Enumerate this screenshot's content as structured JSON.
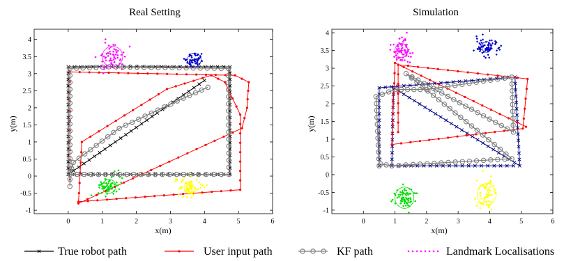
{
  "legend": [
    {
      "label": "True robot path",
      "color": "#000000",
      "marker": "x"
    },
    {
      "label": "User input path",
      "color": "#ff0000",
      "marker": "dot"
    },
    {
      "label": "KF path",
      "color": "#7f7f7f",
      "marker": "o"
    },
    {
      "label": "Landmark Localisations",
      "color": "#ff00ff",
      "marker": "dots"
    }
  ],
  "chart_data": [
    {
      "type": "line",
      "title": "Real Setting",
      "xlabel": "x(m)",
      "ylabel": "y(m)",
      "xlim": [
        -1,
        6
      ],
      "ylim": [
        -1.1,
        4.3
      ],
      "xticks": [
        0,
        1,
        2,
        3,
        4,
        5,
        6
      ],
      "yticks": [
        -1,
        -0.5,
        0,
        0.5,
        1,
        1.5,
        2,
        2.5,
        3,
        3.5,
        4
      ],
      "colors": {
        "true": "#000000",
        "user": "#ff0000",
        "kf": "#7f7f7f",
        "kf_dark": "#555555",
        "lm1": "#ff00ff",
        "lm2": "#0000cc",
        "lm3": "#00dd00",
        "lm4": "#ffff00"
      },
      "series": [
        {
          "name": "True robot path",
          "key": "true",
          "x": [
            0,
            0,
            4.75,
            4.75,
            0,
            4.0
          ],
          "y": [
            0.05,
            3.2,
            3.2,
            0.05,
            0.05,
            2.8
          ]
        },
        {
          "name": "User input path",
          "key": "user",
          "x": [
            0.05,
            0.05,
            4.9,
            5.3,
            5.25,
            5.1,
            0.3,
            0.4,
            2.9,
            4.2,
            4.6,
            5.05,
            5.05,
            0.3
          ],
          "y": [
            -0.1,
            3.05,
            2.95,
            2.75,
            2.0,
            1.4,
            -0.8,
            1.0,
            2.55,
            2.95,
            2.75,
            1.8,
            -0.4,
            -0.75
          ]
        },
        {
          "name": "KF path",
          "key": "kf",
          "x": [
            0.05,
            0.05,
            1.2,
            4.7,
            4.72,
            3.6,
            0.05,
            0.15,
            1.5,
            3.2,
            4.1
          ],
          "y": [
            -0.3,
            3.15,
            3.2,
            3.15,
            0.05,
            0.05,
            0.05,
            0.4,
            1.4,
            2.2,
            2.6
          ]
        },
        {
          "name": "Landmark 1",
          "key": "lm1",
          "center": [
            1.3,
            3.5
          ],
          "spread": [
            0.35,
            0.35
          ],
          "n": 60,
          "circle_r": 0.3
        },
        {
          "name": "Landmark 2",
          "key": "lm2",
          "center": [
            3.7,
            3.4
          ],
          "spread": [
            0.3,
            0.18
          ],
          "n": 50,
          "circle_r": 0.2
        },
        {
          "name": "Landmark 3",
          "key": "lm3",
          "center": [
            1.2,
            -0.3
          ],
          "spread": [
            0.35,
            0.3
          ],
          "n": 60,
          "circle_r": 0.2
        },
        {
          "name": "Landmark 4",
          "key": "lm4",
          "center": [
            3.55,
            -0.35
          ],
          "spread": [
            0.4,
            0.38
          ],
          "n": 70,
          "circle_r": 0.15
        }
      ]
    },
    {
      "type": "line",
      "title": "Simulation",
      "xlabel": "x(m)",
      "ylabel": "y(m)",
      "xlim": [
        -1,
        6
      ],
      "ylim": [
        -1.1,
        4.1
      ],
      "xticks": [
        0,
        1,
        2,
        3,
        4,
        5,
        6
      ],
      "yticks": [
        -1,
        -0.5,
        0,
        0.5,
        1,
        1.5,
        2,
        2.5,
        3,
        3.5,
        4
      ],
      "colors": {
        "true": "#000080",
        "user": "#ff0000",
        "kf": "#7f7f7f",
        "kf_dark": "#555555",
        "lm1": "#ff00ff",
        "lm2": "#0000cc",
        "lm3": "#00dd00",
        "lm4": "#ffff00"
      },
      "series": [
        {
          "name": "True robot path",
          "key": "true",
          "x": [
            0.5,
            0.5,
            4.8,
            4.95,
            0.95,
            0.9,
            4.75
          ],
          "y": [
            0.25,
            2.45,
            2.75,
            0.25,
            2.45,
            0.25,
            0.25
          ]
        },
        {
          "name": "User input path",
          "key": "user",
          "x": [
            1.1,
            1.1,
            5.2,
            5.05,
            0.9,
            1.0,
            5.15
          ],
          "y": [
            1.2,
            3.1,
            2.7,
            1.3,
            0.85,
            3.15,
            1.35
          ]
        },
        {
          "name": "KF path",
          "key": "kf",
          "x": [
            0.5,
            0.4,
            1.0,
            2.0,
            4.7,
            4.75,
            1.35,
            3.6,
            4.7,
            0.9,
            0.55
          ],
          "y": [
            0.25,
            2.2,
            2.4,
            2.4,
            2.75,
            1.2,
            2.85,
            1.25,
            0.45,
            0.25,
            0.3
          ]
        },
        {
          "name": "Landmark 1",
          "key": "lm1",
          "center": [
            1.2,
            3.5
          ],
          "spread": [
            0.3,
            0.4
          ],
          "n": 70,
          "circle_r": 0.2
        },
        {
          "name": "Landmark 2",
          "key": "lm2",
          "center": [
            3.9,
            3.6
          ],
          "spread": [
            0.35,
            0.25
          ],
          "n": 70,
          "circle_r": 0.15
        },
        {
          "name": "Landmark 3",
          "key": "lm3",
          "center": [
            1.3,
            -0.65
          ],
          "spread": [
            0.35,
            0.3
          ],
          "n": 70,
          "circle_r": 0.3
        },
        {
          "name": "Landmark 4",
          "key": "lm4",
          "center": [
            3.9,
            -0.55
          ],
          "spread": [
            0.3,
            0.45
          ],
          "n": 70,
          "circle_r": 0.3
        }
      ]
    }
  ]
}
